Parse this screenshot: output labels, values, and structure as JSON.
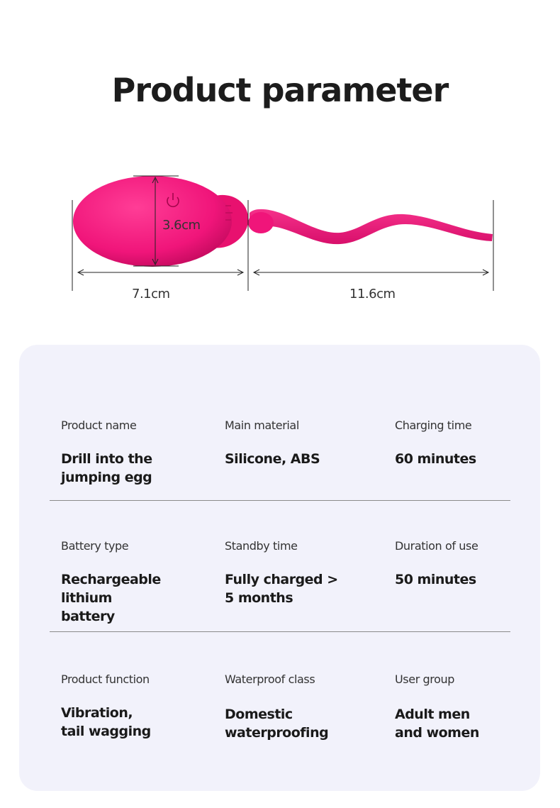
{
  "page": {
    "title": "Product parameter"
  },
  "dimensions": {
    "height": "3.6cm",
    "egg_length": "7.1cm",
    "tail_length": "11.6cm"
  },
  "colors": {
    "product": "#f0157a",
    "product_shadow": "#c40a5e",
    "card_bg": "#f2f2fb"
  },
  "specs": [
    {
      "label": "Product name",
      "value": "Drill into the jumping egg"
    },
    {
      "label": "Main material",
      "value": "Silicone, ABS"
    },
    {
      "label": "Charging time",
      "value": "60 minutes"
    },
    {
      "label": "Battery type",
      "value": "Rechargeable lithium battery"
    },
    {
      "label": "Standby time",
      "value": "Fully charged > 5 months"
    },
    {
      "label": "Duration of use",
      "value": "50 minutes"
    },
    {
      "label": "Product function",
      "value": "Vibration, tail wagging"
    },
    {
      "label": "Waterproof class",
      "value": "Domestic waterproofing"
    },
    {
      "label": "User group",
      "value": "Adult men and women"
    }
  ]
}
